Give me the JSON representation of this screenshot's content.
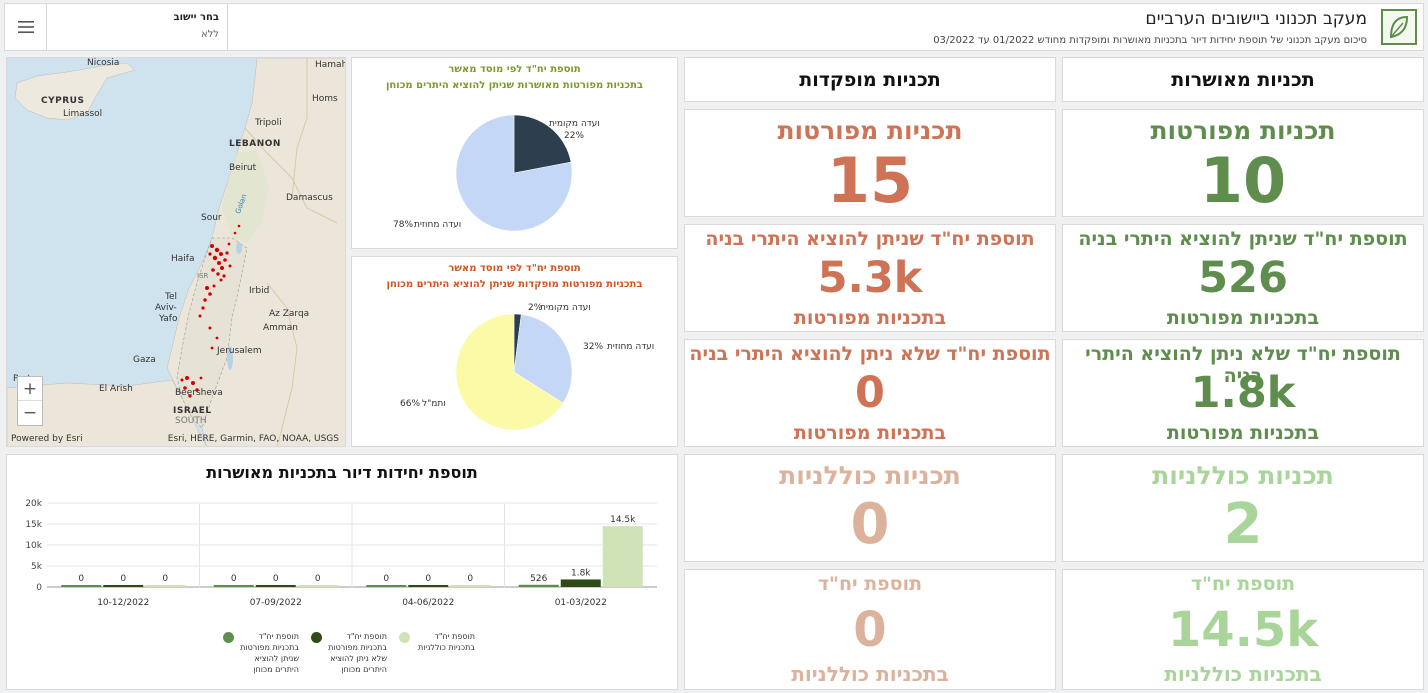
{
  "header": {
    "title": "מעקב תכנוני ביישובים הערביים",
    "subtitle": "סיכום מעקב תכנוני של תוספת יחידות דיור בתכניות מאושרות ומופקדות מחודש 01/2022 עד 03/2022",
    "selector_label": "בחר יישוב",
    "selector_value": "ללא"
  },
  "map": {
    "labels": [
      "Nicosia",
      "Hamah",
      "CYPRUS",
      "Limassol",
      "Homs",
      "Tripoli",
      "LEBANON",
      "Beirut",
      "Damascus",
      "Sour",
      "Haifa",
      "Irbid",
      "Tel",
      "Aviv-",
      "Yafo",
      "Az Zarqa",
      "Amman",
      "Jerusalem",
      "Gaza",
      "Port",
      "El Arish",
      "Beersheva",
      "ISRAEL",
      "SOUTH",
      "ISR",
      "Golan"
    ],
    "zoom_in": "+",
    "zoom_out": "−",
    "powered_by": "Powered by Esri",
    "attribution": "Esri, HERE, Garmin, FAO, NOAA, USGS"
  },
  "pie_approved": {
    "title_line1": "תוספת יח\"ד לפי מוסד מאשר",
    "title_line2": "בתכניות מפורטות מאושרות שניתן להוציא היתרים מכוחן",
    "slices": [
      {
        "label": "ועדה מקומית",
        "value": 22,
        "pct": "22%",
        "color": "#2d3e4e"
      },
      {
        "label": "ועדה מחוזית",
        "value": 78,
        "pct": "78%",
        "color": "#c5d7f7"
      }
    ]
  },
  "pie_deposited": {
    "title_line1": "תוספת יח\"ד לפי מוסד מאשר",
    "title_line2": "בתכניות מפורטות מופקדות שניתן להוציא היתרים מכוחן",
    "slices": [
      {
        "label": "ועדה מקומית",
        "value": 2,
        "pct": "2%",
        "color": "#2d3e4e"
      },
      {
        "label": "ועדה מחוזית",
        "value": 32,
        "pct": "32%",
        "color": "#c5d7f7"
      },
      {
        "label": "ותמ\"ל",
        "value": 66,
        "pct": "66%",
        "color": "#fbfaa6"
      }
    ]
  },
  "bar_chart": {
    "title": "תוספת יחידות דיור בתכניות מאושרות"
  },
  "chart_data": {
    "type": "bar",
    "categories": [
      "10-12/2022",
      "07-09/2022",
      "04-06/2022",
      "01-03/2022"
    ],
    "series": [
      {
        "name": "תוספת יח\"ד בתכניות מפורטות שניתן להוציא היתרים מכוחן",
        "values": [
          0,
          0,
          0,
          526
        ],
        "labels": [
          "0",
          "0",
          "0",
          "526"
        ],
        "color": "#5f8d4e"
      },
      {
        "name": "תוספת יח\"ד בתכניות מפורטות שלא ניתן להוציא היתרים מכוחן",
        "values": [
          0,
          0,
          0,
          1800
        ],
        "labels": [
          "0",
          "0",
          "0",
          "1.8k"
        ],
        "color": "#2e4a16"
      },
      {
        "name": "תוספת יח\"ד בתכניות כוללניות",
        "values": [
          0,
          0,
          0,
          14500
        ],
        "labels": [
          "0",
          "0",
          "0",
          "14.5k"
        ],
        "color": "#cfe2b8"
      }
    ],
    "y_ticks": [
      "0",
      "5k",
      "10k",
      "15k",
      "20k"
    ],
    "ylim": [
      0,
      20000
    ],
    "grid": true,
    "legend_position": "bottom"
  },
  "legend": [
    {
      "lines": [
        "תוספת יח\"ד",
        "בתכניות מפורטות",
        "שניתן להוציא",
        "היתרים מכוחן"
      ],
      "color": "#5f8d4e"
    },
    {
      "lines": [
        "תוספת יח\"ד",
        "בתכניות מפורטות",
        "שלא ניתן להוציא",
        "היתרים מכוחן"
      ],
      "color": "#2e4a16"
    },
    {
      "lines": [
        "תוספת יח\"ד",
        "בתכניות כוללניות"
      ],
      "color": "#cfe2b8"
    }
  ],
  "approved": {
    "heading": "תכניות מאושרות",
    "detailed_title": "תכניות מפורטות",
    "detailed_count": "10",
    "permit_title": "תוספת יח\"ד שניתן להוציא היתרי בניה",
    "permit_value": "526",
    "permit_sub": "בתכניות מפורטות",
    "nopermit_title": "תוספת יח\"ד שלא ניתן להוציא היתרי בניה",
    "nopermit_value": "1.8k",
    "nopermit_sub": "בתכניות מפורטות",
    "general_title": "תכניות כוללניות",
    "general_count": "2",
    "units_title": "תוספת יח\"ד",
    "units_value": "14.5k",
    "units_sub": "בתכניות כוללניות"
  },
  "deposited": {
    "heading": "תכניות מופקדות",
    "detailed_title": "תכניות מפורטות",
    "detailed_count": "15",
    "permit_title": "תוספת יח\"ד שניתן להוציא היתרי בניה",
    "permit_value": "5.3k",
    "permit_sub": "בתכניות מפורטות",
    "nopermit_title": "תוספת יח\"ד שלא ניתן להוציא היתרי בניה",
    "nopermit_value": "0",
    "nopermit_sub": "בתכניות מפורטות",
    "general_title": "תכניות כוללניות",
    "general_count": "0",
    "units_title": "תוספת יח\"ד",
    "units_value": "0",
    "units_sub": "בתכניות כוללניות"
  },
  "colors": {
    "approved_dark": "#5f8d4e",
    "approved_light": "#a9d59a",
    "deposited_dark": "#cf7356",
    "deposited_light": "#ddb29c",
    "accent_green_title": "#7a9a2c",
    "accent_orange_title": "#d2541c"
  }
}
